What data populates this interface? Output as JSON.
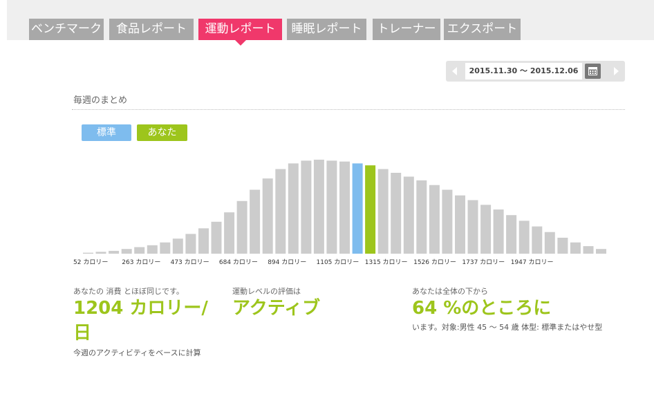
{
  "tabs": [
    {
      "label": "ベンチマーク",
      "active": false
    },
    {
      "label": "食品レポート",
      "active": false
    },
    {
      "label": "運動レポート",
      "active": true
    },
    {
      "label": "睡眠レポート",
      "active": false
    },
    {
      "label": "トレーナー",
      "active": false
    },
    {
      "label": "エクスポート",
      "active": false
    }
  ],
  "date_range": "2015.11.30 〜 2015.12.06",
  "section_title": "毎週のまとめ",
  "legend": {
    "standard": "標準",
    "you": "あなた"
  },
  "colors": {
    "standard": "#7ebcee",
    "you": "#9dc51c",
    "bar": "#cccccc",
    "accent": "#f0386b"
  },
  "chart_data": {
    "type": "bar",
    "tick_labels": [
      "52 カロリー",
      "263 カロリー",
      "473 カロリー",
      "684 カロリー",
      "894 カロリー",
      "1105 カロリー",
      "1315 カロリー",
      "1526 カロリー",
      "1737 カロリー",
      "1947 カロリー"
    ],
    "values": [
      0.01,
      0.02,
      0.03,
      0.05,
      0.07,
      0.09,
      0.12,
      0.16,
      0.21,
      0.27,
      0.34,
      0.44,
      0.56,
      0.68,
      0.8,
      0.9,
      0.96,
      0.99,
      1.0,
      0.99,
      0.98,
      0.96,
      0.94,
      0.9,
      0.86,
      0.82,
      0.78,
      0.73,
      0.68,
      0.62,
      0.57,
      0.52,
      0.47,
      0.41,
      0.35,
      0.29,
      0.23,
      0.17,
      0.12,
      0.08,
      0.05,
      0.03,
      0.02,
      0.01
    ],
    "standard_index": 21,
    "you_index": 22
  },
  "stats": {
    "consumption_label": "あなたの 消費 とほぼ同じです。",
    "consumption_value": "1204 カロリー/日",
    "consumption_note": "今週のアクティビティをベースに計算",
    "level_label": "運動レベルの評価は",
    "level_value": "アクティブ",
    "rank_label": "あなたは全体の下から",
    "rank_value": "64 %のところに",
    "rank_note": "います。対象:男性 45 〜 54 歳 体型: 標準またはやせ型"
  }
}
